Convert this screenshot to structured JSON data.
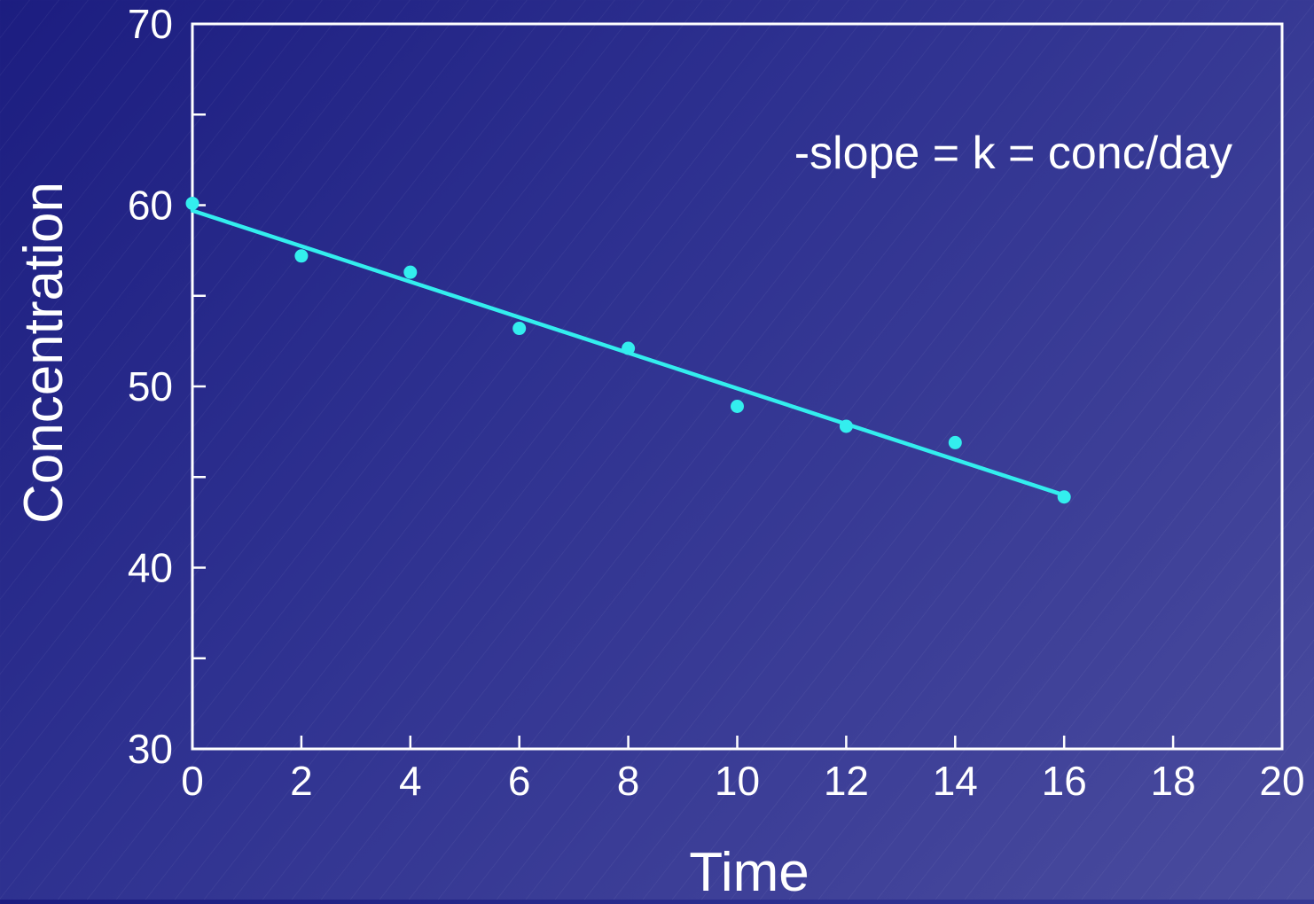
{
  "chart_data": {
    "type": "scatter",
    "xlabel": "Time",
    "ylabel": "Concentration",
    "annotation": "-slope = k = conc/day",
    "xlim": [
      0,
      20
    ],
    "ylim": [
      30,
      70
    ],
    "x_ticks": [
      0,
      2,
      4,
      6,
      8,
      10,
      12,
      14,
      16,
      18,
      20
    ],
    "y_ticks": [
      30,
      40,
      50,
      60,
      70
    ],
    "y_minor_ticks": [
      35,
      45,
      55,
      65
    ],
    "points": [
      {
        "x": 0,
        "y": 60.1
      },
      {
        "x": 2,
        "y": 57.2
      },
      {
        "x": 4,
        "y": 56.3
      },
      {
        "x": 6,
        "y": 53.2
      },
      {
        "x": 8,
        "y": 52.1
      },
      {
        "x": 10,
        "y": 48.9
      },
      {
        "x": 12,
        "y": 47.8
      },
      {
        "x": 14,
        "y": 46.9
      },
      {
        "x": 16,
        "y": 43.9
      }
    ],
    "fit_line": {
      "x": [
        0,
        16
      ],
      "y": [
        59.7,
        44.0
      ]
    },
    "grid": false,
    "colors": {
      "points": "#33eeee",
      "line": "#33eeee",
      "axes": "#ffffff",
      "text": "#ffffff"
    }
  }
}
